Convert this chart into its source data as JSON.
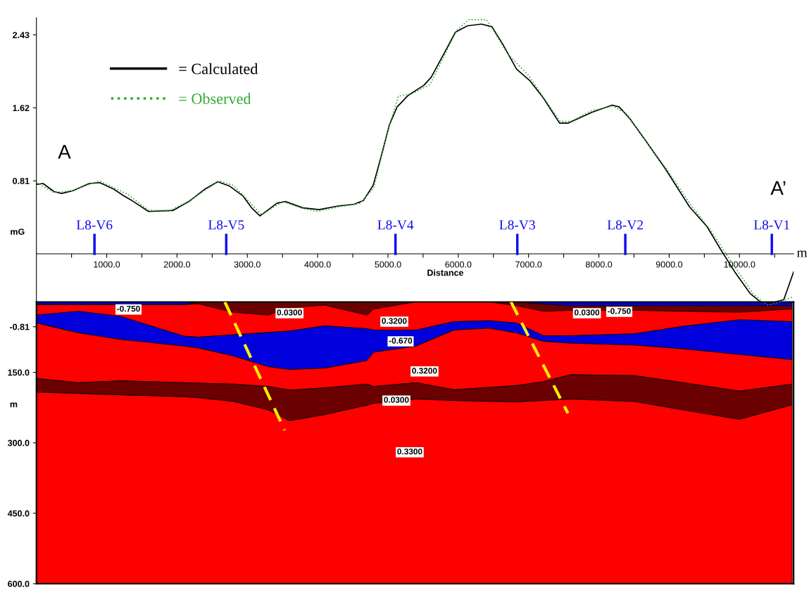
{
  "chart_data": [
    {
      "type": "line",
      "xlabel": "Distance",
      "ylabel": "mG",
      "xlim": [
        0,
        10770
      ],
      "ylim": [
        -0.85,
        2.62
      ],
      "xticks": [
        {
          "value": 500,
          "label": null
        },
        {
          "value": 1000,
          "label": "1000.0"
        },
        {
          "value": 1500,
          "label": null
        },
        {
          "value": 2000,
          "label": "2000.0"
        },
        {
          "value": 2500,
          "label": null
        },
        {
          "value": 3000,
          "label": "3000.0"
        },
        {
          "value": 3500,
          "label": null
        },
        {
          "value": 4000,
          "label": "4000.0"
        },
        {
          "value": 4500,
          "label": null
        },
        {
          "value": 5000,
          "label": "5000.0"
        },
        {
          "value": 5500,
          "label": null
        },
        {
          "value": 6000,
          "label": "6000.0"
        },
        {
          "value": 6500,
          "label": null
        },
        {
          "value": 7000,
          "label": "7000.0"
        },
        {
          "value": 7500,
          "label": null
        },
        {
          "value": 8000,
          "label": "8000.0"
        },
        {
          "value": 8500,
          "label": null
        },
        {
          "value": 9000,
          "label": "9000.0"
        },
        {
          "value": 9500,
          "label": null
        },
        {
          "value": 10000,
          "label": "10000.0"
        },
        {
          "value": 10500,
          "label": null
        }
      ],
      "yticks": [
        -0.81,
        0.81,
        1.62,
        2.43
      ],
      "grid": false,
      "legend": "top left",
      "marker": "none",
      "series": [
        {
          "name": "= Calculated",
          "color": "#000000",
          "line_style": "solid",
          "x": [
            0,
            95,
            250,
            360,
            520,
            750,
            900,
            1095,
            1250,
            1360,
            1595,
            1940,
            2170,
            2400,
            2580,
            2750,
            2940,
            3060,
            3180,
            3420,
            3540,
            3790,
            4020,
            4290,
            4520,
            4650,
            4790,
            4900,
            5020,
            5130,
            5290,
            5510,
            5615,
            5810,
            5960,
            6130,
            6330,
            6480,
            6630,
            6830,
            7020,
            7210,
            7440,
            7560,
            7900,
            8190,
            8290,
            8440,
            8670,
            8940,
            9290,
            9540,
            9730,
            9940,
            10150,
            10290,
            10440,
            10630,
            10770
          ],
          "values": [
            0.77,
            0.78,
            0.69,
            0.67,
            0.7,
            0.78,
            0.79,
            0.72,
            0.64,
            0.59,
            0.47,
            0.48,
            0.58,
            0.72,
            0.8,
            0.75,
            0.64,
            0.51,
            0.42,
            0.56,
            0.58,
            0.51,
            0.49,
            0.53,
            0.55,
            0.59,
            0.76,
            1.07,
            1.43,
            1.63,
            1.76,
            1.87,
            1.96,
            2.24,
            2.46,
            2.53,
            2.55,
            2.52,
            2.33,
            2.05,
            1.92,
            1.73,
            1.45,
            1.45,
            1.57,
            1.65,
            1.63,
            1.5,
            1.25,
            0.95,
            0.52,
            0.3,
            0.05,
            -0.21,
            -0.44,
            -0.53,
            -0.55,
            -0.51,
            -0.2
          ]
        },
        {
          "name": "= Observed",
          "color": "#33aa33",
          "line_style": "dotted",
          "x": [
            0,
            250,
            500,
            900,
            1300,
            1600,
            1900,
            2200,
            2600,
            2800,
            3000,
            3200,
            3500,
            3800,
            4000,
            4300,
            4600,
            4800,
            5000,
            5150,
            5350,
            5600,
            5800,
            5980,
            6150,
            6300,
            6400,
            6500,
            6700,
            7000,
            7200,
            7450,
            7600,
            7900,
            8200,
            8400,
            8700,
            9000,
            9300,
            9600,
            9800,
            10000,
            10200,
            10400,
            10600,
            10750
          ],
          "values": [
            0.79,
            0.68,
            0.7,
            0.81,
            0.66,
            0.48,
            0.48,
            0.6,
            0.81,
            0.76,
            0.6,
            0.43,
            0.58,
            0.5,
            0.47,
            0.52,
            0.56,
            0.73,
            1.38,
            1.75,
            1.78,
            1.88,
            2.2,
            2.48,
            2.6,
            2.6,
            2.6,
            2.48,
            2.22,
            1.98,
            1.75,
            1.47,
            1.47,
            1.59,
            1.64,
            1.55,
            1.22,
            0.9,
            0.55,
            0.25,
            0.01,
            -0.22,
            -0.45,
            -0.57,
            -0.53,
            -0.48
          ]
        }
      ],
      "ref_lines": [
        {
          "axis": "x",
          "value": 826,
          "label": "L8-V6",
          "color": "#1010ee"
        },
        {
          "axis": "x",
          "value": 2700,
          "label": "L8-V5",
          "color": "#1010ee"
        },
        {
          "axis": "x",
          "value": 5107,
          "label": "L8-V4",
          "color": "#1010ee"
        },
        {
          "axis": "x",
          "value": 6840,
          "label": "L8-V3",
          "color": "#1010ee"
        },
        {
          "axis": "x",
          "value": 8376,
          "label": "L8-V2",
          "color": "#1010ee"
        },
        {
          "axis": "x",
          "value": 10460,
          "label": "L8-V1",
          "color": "#1010ee"
        }
      ],
      "annotations": [
        "A",
        "A’",
        "m"
      ]
    },
    {
      "type": "area",
      "stacked": true,
      "ylabel": "m",
      "xlim": [
        0,
        10770
      ],
      "ylim": [
        600,
        0
      ],
      "tick_labels": "y",
      "grid": false,
      "yticks": [
        {
          "value": 150,
          "label": "150.0"
        },
        {
          "value": 300,
          "label": "300.0"
        },
        {
          "value": 450,
          "label": "450.0"
        },
        {
          "value": 600,
          "label": "600.0"
        }
      ],
      "x": [
        0,
        600,
        1200,
        2100,
        2300,
        2800,
        3300,
        3600,
        4100,
        4700,
        4800,
        5400,
        5940,
        6440,
        6830,
        7210,
        7600,
        8500,
        9200,
        10000,
        10750
      ],
      "series": [
        {
          "color": "#0000dd",
          "values": [
            6,
            6,
            6,
            6,
            0,
            0,
            0,
            0,
            0,
            0,
            0,
            0,
            0,
            0,
            0,
            5,
            8,
            8,
            8,
            8,
            8
          ]
        },
        {
          "color": "#6b0000",
          "values": [
            0,
            0,
            0,
            0,
            4,
            22,
            28,
            12,
            7,
            28,
            15,
            0,
            0,
            0,
            8,
            15,
            10,
            10,
            12,
            14,
            7
          ]
        },
        {
          "color": "#ff0000",
          "values": [
            22,
            14,
            25,
            67,
            71,
            48,
            37,
            50,
            44,
            29,
            45,
            60,
            42,
            40,
            37,
            52,
            54,
            50,
            32,
            16,
            27
          ]
        },
        {
          "color": "#0000dd",
          "values": [
            17,
            46,
            49,
            21,
            23,
            45,
            73,
            82,
            90,
            68,
            47,
            34,
            18,
            16,
            21,
            12,
            16,
            24,
            48,
            74,
            81
          ]
        },
        {
          "color": "#ff0000",
          "values": [
            118,
            106,
            88,
            78,
            75,
            60,
            42,
            44,
            42,
            50,
            73,
            78,
            127,
            126,
            112,
            86,
            67,
            65,
            72,
            78,
            52
          ]
        },
        {
          "color": "#6b0000",
          "values": [
            29,
            23,
            30,
            30,
            31,
            37,
            50,
            65,
            57,
            45,
            36,
            35,
            23,
            30,
            35,
            40,
            52,
            55,
            58,
            60,
            44
          ]
        },
        {
          "color": "#ff0000",
          "values": [
            408,
            405,
            402,
            398,
            396,
            388,
            370,
            347,
            360,
            380,
            384,
            393,
            390,
            388,
            387,
            390,
            393,
            388,
            370,
            350,
            381
          ]
        },
        {
          "type": "line",
          "color": "#ffee00",
          "line_style": "dashed",
          "x": [
            2680,
            3530
          ],
          "values": [
            0,
            273
          ]
        },
        {
          "type": "line",
          "color": "#ffee00",
          "line_style": "dashed",
          "x": [
            6750,
            7560
          ],
          "values": [
            0,
            237
          ]
        }
      ],
      "annotations": [
        {
          "text": "-0.750",
          "x": 1310,
          "y": 16
        },
        {
          "text": "0.0300",
          "x": 3600,
          "y": 24
        },
        {
          "text": "0.3200",
          "x": 5090,
          "y": 42
        },
        {
          "text": "-0.670",
          "x": 5180,
          "y": 84
        },
        {
          "text": "0.3200",
          "x": 5520,
          "y": 148
        },
        {
          "text": "0.0300",
          "x": 5120,
          "y": 210
        },
        {
          "text": "0.3300",
          "x": 5310,
          "y": 320
        },
        {
          "text": "0.0300",
          "x": 7830,
          "y": 24
        },
        {
          "text": "-0.750",
          "x": 8290,
          "y": 21
        }
      ]
    }
  ]
}
